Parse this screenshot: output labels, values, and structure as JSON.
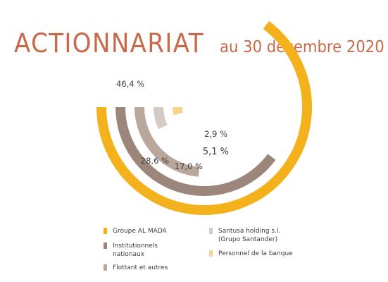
{
  "title": "ACTIONNARIAT",
  "subtitle": "au 30 décembre 2020",
  "chart_data": {
    "type": "pie",
    "title": "ACTIONNARIAT",
    "subtitle": "au 30 décembre 2020",
    "legend_position": "bottom",
    "series": [
      {
        "name": "Groupe AL MADA",
        "value": 46.4,
        "label": "46,4 %",
        "color": "#f3b21b"
      },
      {
        "name": "Institutionnels\nnationaux",
        "value": 28.6,
        "label": "28,6 %",
        "color": "#9c857a"
      },
      {
        "name": "Flottant et autres",
        "value": 17.0,
        "label": "17,0 %",
        "color": "#b9a79c"
      },
      {
        "name": "Santusa holding s.l.\n(Grupo Santander)",
        "value": 5.1,
        "label": "5,1 %",
        "color": "#d6cbc4"
      },
      {
        "name": "Personnel de la banque",
        "value": 2.9,
        "label": "2,9 %",
        "color": "#f9d48c"
      }
    ]
  }
}
